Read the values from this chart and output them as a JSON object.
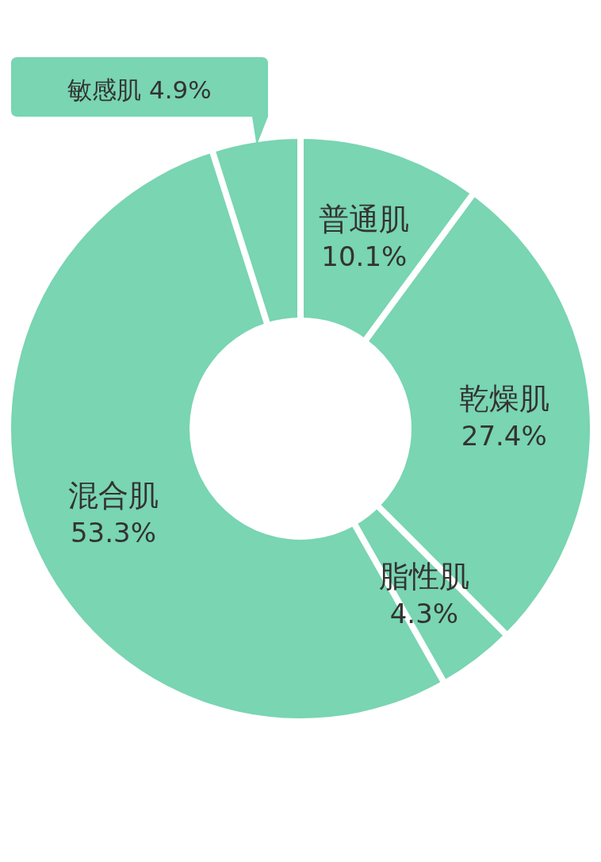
{
  "chart_data": {
    "type": "donut",
    "categories": [
      "普通肌",
      "乾燥肌",
      "脂性肌",
      "混合肌",
      "敏感肌"
    ],
    "values": [
      10.1,
      27.4,
      4.3,
      53.3,
      4.9
    ],
    "value_labels": [
      "10.1%",
      "27.4%",
      "4.3%",
      "53.3%",
      "4.9%"
    ],
    "colors": [
      "#79d5b2",
      "#79d5b2",
      "#79d5b2",
      "#79d5b2",
      "#79d5b2"
    ]
  }
}
